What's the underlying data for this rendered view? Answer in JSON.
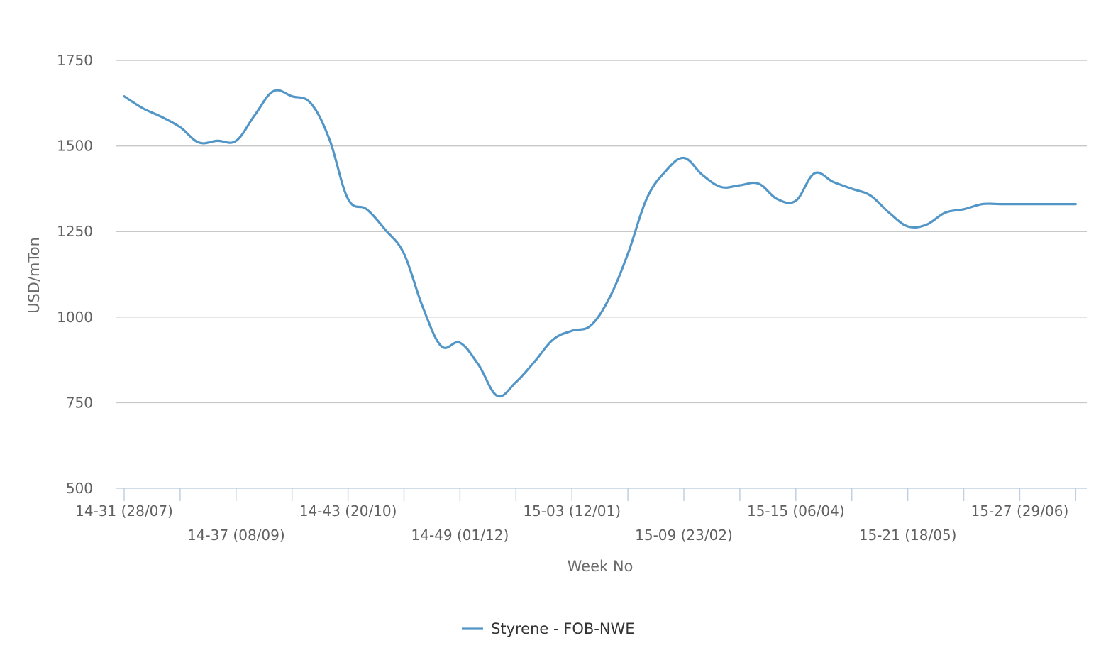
{
  "chart_data": {
    "type": "line",
    "title": "",
    "xlabel": "Week No",
    "ylabel": "USD/mTon",
    "ylim": [
      500,
      1750
    ],
    "yticks": [
      500,
      750,
      1000,
      1250,
      1500,
      1750
    ],
    "grid": true,
    "legend_position": "bottom-center",
    "x_ticks": [
      {
        "week": 0,
        "label": "14-31 (28/07)"
      },
      {
        "week": 6,
        "label": "14-37 (08/09)"
      },
      {
        "week": 12,
        "label": "14-43 (20/10)"
      },
      {
        "week": 18,
        "label": "14-49 (01/12)"
      },
      {
        "week": 24,
        "label": "15-03 (12/01)"
      },
      {
        "week": 30,
        "label": "15-09 (23/02)"
      },
      {
        "week": 36,
        "label": "15-15 (06/04)"
      },
      {
        "week": 42,
        "label": "15-21 (18/05)"
      },
      {
        "week": 48,
        "label": "15-27 (29/06)"
      }
    ],
    "series": [
      {
        "name": "Styrene - FOB-NWE",
        "color": "#5295c7",
        "x": [
          0,
          1,
          2,
          3,
          4,
          5,
          6,
          7,
          8,
          9,
          10,
          11,
          12,
          13,
          14,
          15,
          16,
          17,
          18,
          19,
          20,
          21,
          22,
          23,
          24,
          25,
          26,
          27,
          28,
          29,
          30,
          31,
          32,
          33,
          34,
          35,
          36,
          37,
          38,
          39,
          40,
          41,
          42,
          43,
          44,
          45,
          46,
          47,
          48,
          49,
          50,
          51
        ],
        "values": [
          1645,
          1610,
          1585,
          1555,
          1510,
          1515,
          1515,
          1590,
          1660,
          1645,
          1625,
          1520,
          1345,
          1315,
          1255,
          1185,
          1030,
          915,
          925,
          860,
          770,
          810,
          870,
          935,
          960,
          975,
          1055,
          1185,
          1345,
          1425,
          1465,
          1415,
          1380,
          1385,
          1390,
          1345,
          1340,
          1420,
          1395,
          1375,
          1355,
          1305,
          1265,
          1270,
          1305,
          1315,
          1330,
          1330,
          1330,
          1330,
          1330,
          1330
        ]
      }
    ]
  }
}
